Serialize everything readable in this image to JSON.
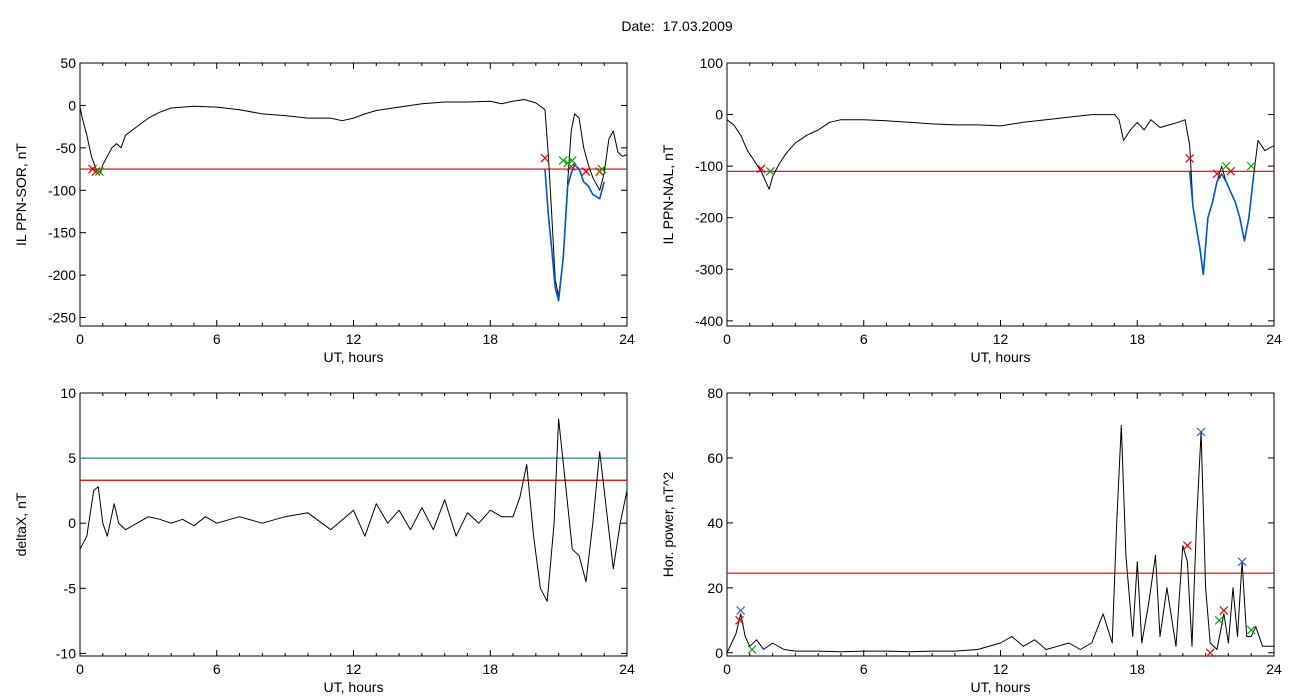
{
  "title": "Date:  17.03.2009",
  "chart_data": [
    {
      "type": "line",
      "ylabel": "IL PPN-SOR, nT",
      "xlabel": "UT, hours",
      "xlim": [
        0,
        24
      ],
      "ylim": [
        -260,
        50
      ],
      "xticks": [
        "0",
        "6",
        "12",
        "18",
        "24"
      ],
      "yticks": [
        50,
        0,
        -50,
        -100,
        -150,
        -200,
        -250
      ],
      "threshold": -75,
      "series": [
        {
          "color": "#000000",
          "x": [
            0.0,
            0.1,
            0.3,
            0.5,
            0.7,
            0.9,
            1.0,
            1.2,
            1.4,
            1.6,
            1.8,
            2.0,
            2.5,
            3.0,
            3.5,
            4.0,
            5.0,
            6.0,
            7.0,
            8.0,
            9.0,
            10.0,
            11.0,
            11.5,
            12.0,
            12.5,
            13.0,
            14.0,
            15.0,
            16.0,
            17.0,
            18.0,
            18.5,
            19.0,
            19.5,
            20.0,
            20.4,
            20.55,
            20.7,
            20.85,
            21.0,
            21.2,
            21.4,
            21.55,
            21.7,
            21.9,
            22.1,
            22.3,
            22.5,
            22.8,
            23.0,
            23.2,
            23.4,
            23.6,
            23.8,
            24.0
          ],
          "y": [
            -2,
            -15,
            -35,
            -60,
            -75,
            -80,
            -70,
            -60,
            -50,
            -45,
            -50,
            -35,
            -25,
            -15,
            -8,
            -3,
            -1,
            -2,
            -5,
            -10,
            -12,
            -15,
            -15,
            -18,
            -15,
            -10,
            -6,
            -2,
            2,
            4,
            4,
            5,
            2,
            5,
            7,
            3,
            -5,
            -60,
            -130,
            -205,
            -225,
            -180,
            -90,
            -30,
            -10,
            -15,
            -50,
            -70,
            -85,
            -100,
            -80,
            -40,
            -30,
            -55,
            -60,
            -58
          ]
        },
        {
          "color": "#0055cc",
          "x": [
            20.4,
            20.55,
            20.7,
            20.85,
            21.0,
            21.2,
            21.4,
            21.55,
            21.7,
            21.9,
            22.1,
            22.3,
            22.5,
            22.8,
            23.0
          ],
          "y": [
            -75,
            -130,
            -170,
            -215,
            -230,
            -180,
            -95,
            -80,
            -70,
            -75,
            -90,
            -95,
            -105,
            -110,
            -90
          ]
        }
      ],
      "markers": [
        {
          "color": "#dd0000",
          "points": [
            [
              0.55,
              -75
            ],
            [
              0.7,
              -78
            ],
            [
              20.4,
              -62
            ],
            [
              21.55,
              -72
            ],
            [
              22.2,
              -78
            ],
            [
              22.8,
              -78
            ]
          ]
        },
        {
          "color": "#00aa00",
          "points": [
            [
              0.85,
              -78
            ],
            [
              21.2,
              -65
            ],
            [
              21.4,
              -68
            ],
            [
              21.6,
              -65
            ],
            [
              22.9,
              -75
            ]
          ]
        }
      ]
    },
    {
      "type": "line",
      "ylabel": "IL PPN-NAL, nT",
      "xlabel": "UT, hours",
      "xlim": [
        0,
        24
      ],
      "ylim": [
        -410,
        100
      ],
      "xticks": [
        "0",
        "6",
        "12",
        "18",
        "24"
      ],
      "yticks": [
        100,
        0,
        -100,
        -200,
        -300,
        -400
      ],
      "threshold": -110,
      "series": [
        {
          "color": "#000000",
          "x": [
            0.0,
            0.3,
            0.6,
            0.9,
            1.2,
            1.5,
            1.7,
            1.85,
            2.0,
            2.3,
            2.6,
            3.0,
            3.5,
            4.0,
            4.5,
            5.0,
            6.0,
            7.0,
            8.0,
            9.0,
            10.0,
            11.0,
            12.0,
            13.0,
            14.0,
            15.0,
            16.0,
            17.0,
            17.2,
            17.4,
            17.7,
            18.0,
            18.3,
            18.6,
            19.0,
            19.4,
            19.8,
            20.1,
            20.3,
            20.45,
            20.6,
            20.75,
            20.9,
            21.1,
            21.3,
            21.5,
            21.7,
            21.9,
            22.1,
            22.3,
            22.5,
            22.7,
            22.9,
            23.1,
            23.3,
            23.6,
            24.0
          ],
          "y": [
            -10,
            -20,
            -40,
            -70,
            -90,
            -110,
            -130,
            -145,
            -120,
            -95,
            -75,
            -55,
            -40,
            -30,
            -15,
            -10,
            -10,
            -12,
            -15,
            -18,
            -20,
            -20,
            -22,
            -15,
            -10,
            -5,
            0,
            0,
            -10,
            -50,
            -30,
            -15,
            -30,
            -10,
            -25,
            -20,
            -15,
            -10,
            -60,
            -180,
            -220,
            -260,
            -310,
            -200,
            -170,
            -130,
            -100,
            -130,
            -150,
            -170,
            -200,
            -245,
            -200,
            -120,
            -50,
            -70,
            -60
          ]
        },
        {
          "color": "#0055cc",
          "x": [
            20.3,
            20.45,
            20.6,
            20.75,
            20.9,
            21.1,
            21.3,
            21.5,
            21.7,
            21.9,
            22.1,
            22.3,
            22.5,
            22.7,
            22.9,
            23.1
          ],
          "y": [
            -110,
            -180,
            -220,
            -260,
            -310,
            -200,
            -170,
            -130,
            -115,
            -130,
            -150,
            -170,
            -200,
            -245,
            -200,
            -120
          ]
        }
      ],
      "markers": [
        {
          "color": "#dd0000",
          "points": [
            [
              1.5,
              -105
            ],
            [
              20.3,
              -85
            ],
            [
              21.5,
              -115
            ],
            [
              22.1,
              -110
            ]
          ]
        },
        {
          "color": "#00aa00",
          "points": [
            [
              1.9,
              -110
            ],
            [
              21.9,
              -100
            ],
            [
              23.0,
              -100
            ]
          ]
        }
      ]
    },
    {
      "type": "line",
      "ylabel": "deltaX, nT",
      "xlabel": "UT, hours",
      "xlim": [
        0,
        24
      ],
      "ylim": [
        -10.2,
        10
      ],
      "xticks": [
        "0",
        "6",
        "12",
        "18",
        "24"
      ],
      "yticks": [
        10,
        5,
        0,
        -5,
        -10
      ],
      "thresholds": [
        {
          "value": 5,
          "color": "#2a8f8a"
        },
        {
          "value": 3.3,
          "color": "#dd0000"
        }
      ],
      "series": [
        {
          "color": "#000000",
          "x": [
            0.0,
            0.3,
            0.6,
            0.8,
            1.0,
            1.2,
            1.5,
            1.7,
            2.0,
            2.5,
            3.0,
            3.5,
            4.0,
            4.5,
            5.0,
            5.5,
            6.0,
            7.0,
            8.0,
            9.0,
            10.0,
            11.0,
            12.0,
            12.5,
            13.0,
            13.5,
            14.0,
            14.5,
            15.0,
            15.5,
            16.0,
            16.5,
            17.0,
            17.5,
            18.0,
            18.5,
            19.0,
            19.3,
            19.6,
            19.9,
            20.2,
            20.5,
            20.8,
            21.0,
            21.3,
            21.6,
            21.9,
            22.2,
            22.5,
            22.8,
            23.1,
            23.4,
            23.7,
            24.0
          ],
          "y": [
            -2,
            -1,
            2.5,
            2.8,
            0,
            -1,
            1.5,
            0,
            -0.5,
            0,
            0.5,
            0.3,
            0,
            0.3,
            -0.2,
            0.5,
            0,
            0.5,
            0,
            0.5,
            0.8,
            -0.5,
            1,
            -1,
            1.5,
            0,
            1,
            -0.5,
            1.2,
            -0.5,
            1.8,
            -1,
            0.8,
            0,
            1,
            0.5,
            0.5,
            2,
            4.5,
            -1,
            -5,
            -6,
            0,
            8,
            3,
            -2,
            -2.5,
            -4.5,
            0,
            5.5,
            1,
            -3.5,
            0,
            2.5
          ]
        }
      ]
    },
    {
      "type": "line",
      "ylabel": "Hor. power, nT^2",
      "xlabel": "UT, hours",
      "xlim": [
        0,
        24
      ],
      "ylim": [
        -1,
        80
      ],
      "xticks": [
        "0",
        "6",
        "12",
        "18",
        "24"
      ],
      "yticks": [
        80,
        60,
        40,
        20,
        0
      ],
      "threshold": 24.5,
      "series": [
        {
          "color": "#000000",
          "x": [
            0.0,
            0.2,
            0.4,
            0.6,
            0.8,
            1.0,
            1.3,
            1.6,
            2.0,
            2.5,
            3.0,
            4.0,
            5.0,
            6.0,
            7.0,
            8.0,
            9.0,
            10.0,
            11.0,
            12.0,
            12.5,
            13.0,
            13.5,
            14.0,
            14.5,
            15.0,
            15.5,
            16.0,
            16.5,
            16.9,
            17.1,
            17.3,
            17.5,
            17.8,
            18.0,
            18.2,
            18.5,
            18.8,
            19.0,
            19.3,
            19.7,
            20.0,
            20.2,
            20.4,
            20.6,
            20.8,
            21.0,
            21.2,
            21.5,
            21.8,
            22.0,
            22.2,
            22.4,
            22.6,
            22.8,
            23.0,
            23.2,
            23.5,
            24.0
          ],
          "y": [
            0,
            3,
            6,
            12,
            5,
            2,
            4,
            1,
            3,
            1,
            0.5,
            0.5,
            0.3,
            0.5,
            0.5,
            0.3,
            0.5,
            0.5,
            1,
            3,
            5,
            2,
            4,
            1,
            2,
            3,
            1,
            3,
            12,
            3,
            40,
            70,
            30,
            5,
            28,
            3,
            15,
            30,
            5,
            20,
            2,
            33,
            28,
            2,
            40,
            68,
            20,
            3,
            1,
            12,
            3,
            20,
            5,
            28,
            5,
            5,
            8,
            2,
            2
          ]
        }
      ],
      "markers": [
        {
          "color": "#3366cc",
          "points": [
            [
              0.6,
              13
            ],
            [
              20.8,
              68
            ],
            [
              22.6,
              28
            ]
          ]
        },
        {
          "color": "#dd0000",
          "points": [
            [
              0.55,
              10
            ],
            [
              20.2,
              33
            ],
            [
              21.8,
              13
            ],
            [
              21.2,
              0
            ]
          ]
        },
        {
          "color": "#00aa00",
          "points": [
            [
              1.1,
              1
            ],
            [
              21.6,
              10
            ],
            [
              23.0,
              7
            ]
          ]
        }
      ]
    }
  ]
}
